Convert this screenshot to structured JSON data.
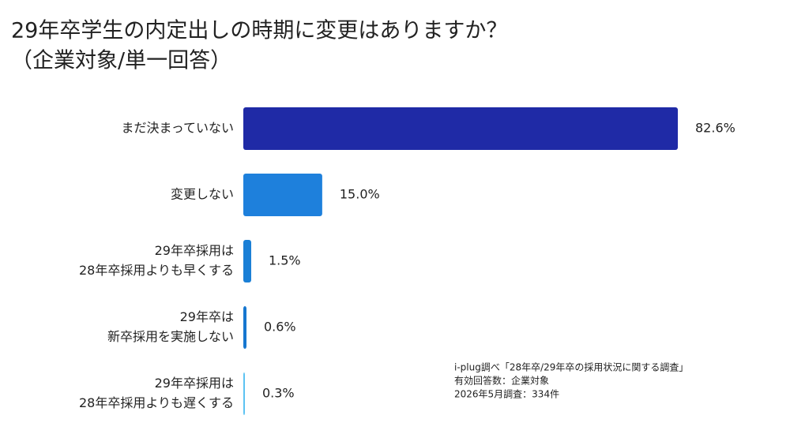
{
  "chart_data": {
    "type": "bar",
    "orientation": "horizontal",
    "title": [
      "29年卒学生の内定出しの時期に変更はありますか？",
      "（企業対象/単一回答）"
    ],
    "categories": [
      [
        "まだ決まっていない"
      ],
      [
        "変更しない"
      ],
      [
        "29年卒採用は",
        "28年卒採用よりも早くする"
      ],
      [
        "29年卒は",
        "新卒採用を実施しない"
      ],
      [
        "29年卒採用は",
        "28年卒採用よりも遅くする"
      ]
    ],
    "values": [
      82.6,
      15.0,
      1.5,
      0.6,
      0.3
    ],
    "value_labels": [
      "82.6%",
      "15.0%",
      "1.5%",
      "0.6%",
      "0.3%"
    ],
    "colors": [
      "#1f2aa6",
      "#1e80dc",
      "#1a7fd6",
      "#1677d0",
      "#5cc3f2"
    ],
    "notes": [
      "i-plug調べ「28年卒/29年卒の採用状況に関する調査」",
      "有効回答数：企業対象",
      "2026年5月調査：334件"
    ]
  }
}
